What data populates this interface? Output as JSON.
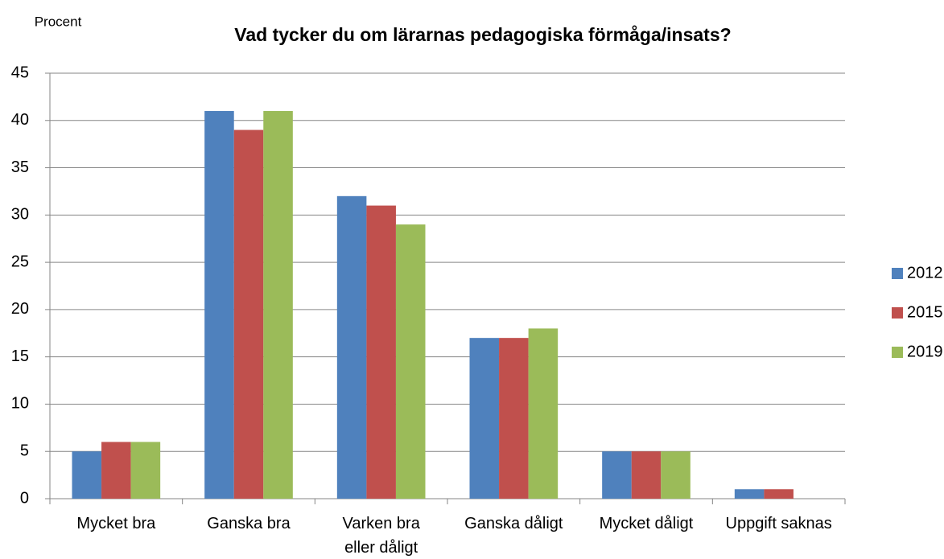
{
  "chart_data": {
    "type": "bar",
    "title": "Vad tycker du om lärarnas pedagogiska förmåga/insats?",
    "y_label": "Procent",
    "categories": [
      "Mycket bra",
      "Ganska bra",
      "Varken bra eller dåligt",
      "Ganska dåligt",
      "Mycket dåligt",
      "Uppgift saknas"
    ],
    "series": [
      {
        "name": "2012",
        "color": "#4f81bd",
        "values": [
          5,
          41,
          32,
          17,
          5,
          1
        ]
      },
      {
        "name": "2015",
        "color": "#c0504d",
        "values": [
          6,
          39,
          31,
          17,
          5,
          1
        ]
      },
      {
        "name": "2019",
        "color": "#9bbb59",
        "values": [
          6,
          41,
          29,
          18,
          5,
          0
        ]
      }
    ],
    "ylim": [
      0,
      45
    ],
    "yticks": [
      0,
      5,
      10,
      15,
      20,
      25,
      30,
      35,
      40,
      45
    ],
    "grid": true,
    "legend": "right"
  }
}
